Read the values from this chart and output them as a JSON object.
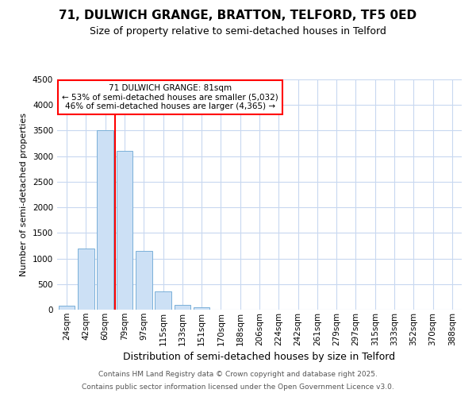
{
  "title_line1": "71, DULWICH GRANGE, BRATTON, TELFORD, TF5 0ED",
  "title_line2": "Size of property relative to semi-detached houses in Telford",
  "xlabel": "Distribution of semi-detached houses by size in Telford",
  "ylabel": "Number of semi-detached properties",
  "categories": [
    "24sqm",
    "42sqm",
    "60sqm",
    "79sqm",
    "97sqm",
    "115sqm",
    "133sqm",
    "151sqm",
    "170sqm",
    "188sqm",
    "206sqm",
    "224sqm",
    "242sqm",
    "261sqm",
    "279sqm",
    "297sqm",
    "315sqm",
    "333sqm",
    "352sqm",
    "370sqm",
    "388sqm"
  ],
  "values": [
    80,
    1200,
    3500,
    3100,
    1150,
    350,
    100,
    50,
    5,
    2,
    1,
    0,
    0,
    0,
    0,
    0,
    0,
    0,
    0,
    0,
    0
  ],
  "bar_color": "#cce0f5",
  "bar_edge_color": "#7ab0d8",
  "annotation_text": "71 DULWICH GRANGE: 81sqm\n← 53% of semi-detached houses are smaller (5,032)\n46% of semi-detached houses are larger (4,365) →",
  "annotation_box_facecolor": "white",
  "annotation_box_edgecolor": "red",
  "red_line_x": 2.5,
  "ylim": [
    0,
    4500
  ],
  "yticks": [
    0,
    500,
    1000,
    1500,
    2000,
    2500,
    3000,
    3500,
    4000,
    4500
  ],
  "footer_line1": "Contains HM Land Registry data © Crown copyright and database right 2025.",
  "footer_line2": "Contains public sector information licensed under the Open Government Licence v3.0.",
  "bg_color": "#ffffff",
  "grid_color": "#c8d8f0",
  "title_fontsize": 11,
  "subtitle_fontsize": 9,
  "xlabel_fontsize": 9,
  "ylabel_fontsize": 8,
  "tick_fontsize": 7.5,
  "footer_fontsize": 6.5
}
